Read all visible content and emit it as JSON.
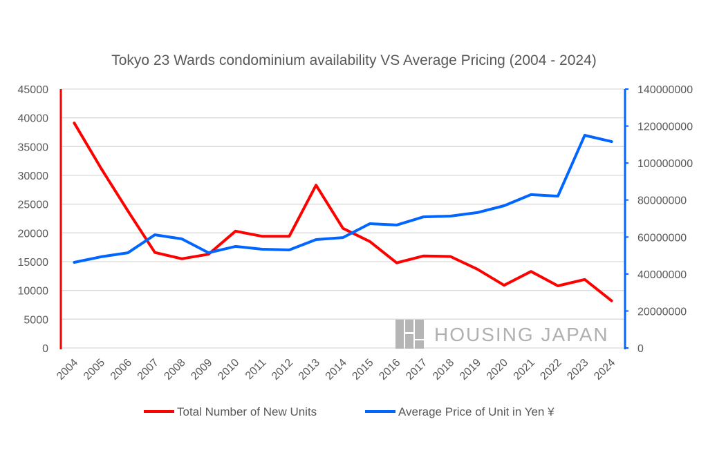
{
  "chart_data": {
    "type": "line",
    "title": "Tokyo 23 Wards condominium availability VS Average Pricing (2004 - 2024)",
    "categories": [
      "2004",
      "2005",
      "2006",
      "2007",
      "2008",
      "2009",
      "2010",
      "2011",
      "2012",
      "2013",
      "2014",
      "2015",
      "2016",
      "2017",
      "2018",
      "2019",
      "2020",
      "2021",
      "2022",
      "2023",
      "2024"
    ],
    "y_left": {
      "min": 0,
      "max": 45000,
      "step": 5000,
      "ticks": [
        "0",
        "5000",
        "10000",
        "15000",
        "20000",
        "25000",
        "30000",
        "35000",
        "40000",
        "45000"
      ],
      "color": "#ff0000"
    },
    "y_right": {
      "min": 0,
      "max": 140000000,
      "step": 20000000,
      "ticks": [
        "0",
        "20000000",
        "40000000",
        "60000000",
        "80000000",
        "100000000",
        "120000000",
        "140000000"
      ],
      "color": "#0066ff"
    },
    "grid": true,
    "legend_position": "bottom",
    "series": [
      {
        "name": "Total Number of New Units",
        "axis": "left",
        "color": "#ff0000",
        "values": [
          39100,
          31200,
          23800,
          16600,
          15500,
          16300,
          20300,
          19400,
          19400,
          28300,
          20800,
          18500,
          14800,
          16000,
          15900,
          13700,
          10900,
          13300,
          10800,
          11900,
          8200
        ]
      },
      {
        "name": "Average Price of Unit in Yen ¥",
        "axis": "right",
        "color": "#0066ff",
        "values": [
          46300000,
          49300000,
          51500000,
          61200000,
          59000000,
          51500000,
          54900000,
          53400000,
          53000000,
          58600000,
          59700000,
          67200000,
          66500000,
          70900000,
          71300000,
          73200000,
          76900000,
          82900000,
          82100000,
          115000000,
          111600000
        ]
      }
    ]
  },
  "watermark": "HOUSING JAPAN"
}
